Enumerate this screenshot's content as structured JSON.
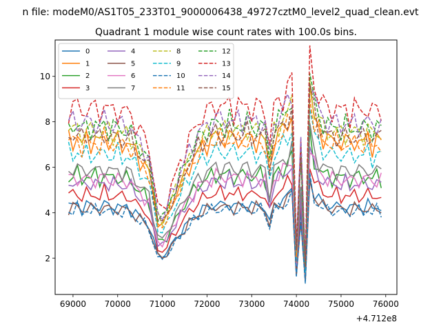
{
  "suptitle": "n file: modeM0/AS1T05_233T01_9000006438_49727cztM0_level2_quad_clean.evt",
  "chart_data": {
    "type": "line",
    "title": "Quadrant 1 module wise count rates with 100.0s bins.",
    "xlabel": "",
    "ylabel": "",
    "x_offset_label": "+4.712e8",
    "xlim": [
      68600,
      76250
    ],
    "ylim": [
      0.4,
      11.6
    ],
    "xticks": [
      69000,
      70000,
      71000,
      72000,
      73000,
      74000,
      75000,
      76000
    ],
    "yticks": [
      2,
      4,
      6,
      8,
      10
    ],
    "grid": false,
    "legend_position": "top-left",
    "x": [
      68900,
      69000,
      69100,
      69200,
      69300,
      69400,
      69500,
      69600,
      69700,
      69800,
      69900,
      70000,
      70100,
      70200,
      70300,
      70400,
      70500,
      70600,
      70700,
      70800,
      70900,
      71000,
      71100,
      71200,
      71300,
      71400,
      71500,
      71600,
      71700,
      71800,
      71900,
      72000,
      72100,
      72200,
      72300,
      72400,
      72500,
      72600,
      72700,
      72800,
      72900,
      73000,
      73100,
      73200,
      73300,
      73400,
      73500,
      73600,
      73700,
      73800,
      73900,
      74000,
      74100,
      74200,
      74300,
      74400,
      74500,
      74600,
      74700,
      74800,
      74900,
      75000,
      75100,
      75200,
      75300,
      75400,
      75500,
      75600,
      75700,
      75800,
      75900
    ],
    "base_profile": [
      1.0,
      1.0,
      1.02,
      0.97,
      1.01,
      0.99,
      1.0,
      0.98,
      1.02,
      0.99,
      0.98,
      1.0,
      0.97,
      0.99,
      0.96,
      0.92,
      0.88,
      0.85,
      0.8,
      0.65,
      0.5,
      0.48,
      0.52,
      0.6,
      0.66,
      0.72,
      0.78,
      0.84,
      0.88,
      0.93,
      0.96,
      0.98,
      1.0,
      1.02,
      1.01,
      1.0,
      1.03,
      0.99,
      1.01,
      1.0,
      1.02,
      0.99,
      1.0,
      1.01,
      0.98,
      0.82,
      1.0,
      1.03,
      1.06,
      1.1,
      1.16,
      0.3,
      0.9,
      0.22,
      1.3,
      1.12,
      1.06,
      1.02,
      1.0,
      0.99,
      1.0,
      0.98,
      1.0,
      0.97,
      1.0,
      0.99,
      0.98,
      1.01,
      0.97,
      1.0,
      0.98
    ],
    "series": [
      {
        "name": "0",
        "level": 4.3,
        "color": "#1f77b4",
        "dash": "solid"
      },
      {
        "name": "1",
        "level": 7.2,
        "color": "#ff7f0e",
        "dash": "solid"
      },
      {
        "name": "2",
        "level": 5.6,
        "color": "#2ca02c",
        "dash": "solid"
      },
      {
        "name": "3",
        "level": 4.8,
        "color": "#d62728",
        "dash": "solid"
      },
      {
        "name": "4",
        "level": 5.3,
        "color": "#9467bd",
        "dash": "solid"
      },
      {
        "name": "5",
        "level": 4.2,
        "color": "#8c564b",
        "dash": "solid"
      },
      {
        "name": "6",
        "level": 5.5,
        "color": "#e377c2",
        "dash": "solid"
      },
      {
        "name": "7",
        "level": 5.9,
        "color": "#7f7f7f",
        "dash": "solid"
      },
      {
        "name": "8",
        "level": 7.6,
        "color": "#bcbd22",
        "dash": "dashed"
      },
      {
        "name": "9",
        "level": 6.6,
        "color": "#17becf",
        "dash": "dashed"
      },
      {
        "name": "10",
        "level": 4.1,
        "color": "#1f77b4",
        "dash": "dashed"
      },
      {
        "name": "11",
        "level": 7.1,
        "color": "#ff7f0e",
        "dash": "dashed"
      },
      {
        "name": "12",
        "level": 7.8,
        "color": "#2ca02c",
        "dash": "dashed"
      },
      {
        "name": "13",
        "level": 8.6,
        "color": "#d62728",
        "dash": "dashed"
      },
      {
        "name": "14",
        "level": 8.0,
        "color": "#9467bd",
        "dash": "dashed"
      },
      {
        "name": "15",
        "level": 7.4,
        "color": "#8c564b",
        "dash": "dashed"
      }
    ]
  }
}
